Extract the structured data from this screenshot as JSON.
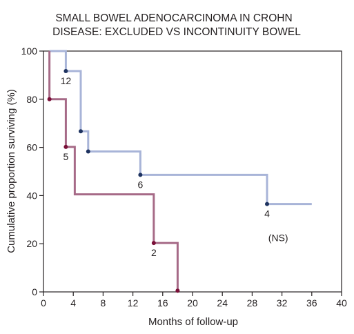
{
  "chart_data": {
    "type": "line",
    "title": [
      "SMALL BOWEL ADENOCARCINOMA IN CROHN",
      "DISEASE: EXCLUDED VS INCONTINUITY BOWEL"
    ],
    "xlabel": "Months of follow-up",
    "ylabel": "Cumulative proportion surviving (%)",
    "xlim": [
      0,
      40
    ],
    "ylim": [
      0,
      100
    ],
    "xticks": [
      0,
      4,
      8,
      12,
      16,
      20,
      24,
      28,
      32,
      36,
      40
    ],
    "yticks": [
      0,
      20,
      40,
      60,
      80,
      100
    ],
    "grid": false,
    "step": true,
    "series": [
      {
        "color": "#a8b4d8",
        "x": [
          0.8,
          3.0,
          5.0,
          6.0,
          13.0,
          30.0,
          36.0
        ],
        "y": [
          100,
          91.7,
          66.7,
          58.3,
          48.6,
          36.5,
          36.5
        ],
        "markers": [
          {
            "x": 3.0,
            "y": 91.7,
            "label": "12"
          },
          {
            "x": 5.0,
            "y": 66.7,
            "label": ""
          },
          {
            "x": 6.0,
            "y": 58.3,
            "label": ""
          },
          {
            "x": 13.0,
            "y": 48.6,
            "label": "6"
          },
          {
            "x": 30.0,
            "y": 36.5,
            "label": "4"
          }
        ],
        "marker_color": "#1e3360"
      },
      {
        "color": "#a66a87",
        "x": [
          0.8,
          3.0,
          4.2,
          14.8,
          18.0
        ],
        "y": [
          80,
          60.2,
          40.5,
          20.3,
          0.5
        ],
        "start_y": 100,
        "markers": [
          {
            "x": 0.8,
            "y": 80,
            "label": ""
          },
          {
            "x": 3.0,
            "y": 60.2,
            "label": "5"
          },
          {
            "x": 14.8,
            "y": 20.3,
            "label": "2"
          },
          {
            "x": 18.0,
            "y": 0.5,
            "label": ""
          }
        ],
        "marker_color": "#7a1038"
      }
    ],
    "annotations": [
      {
        "text": "(NS)",
        "x": 31.5,
        "y": 21
      }
    ]
  }
}
